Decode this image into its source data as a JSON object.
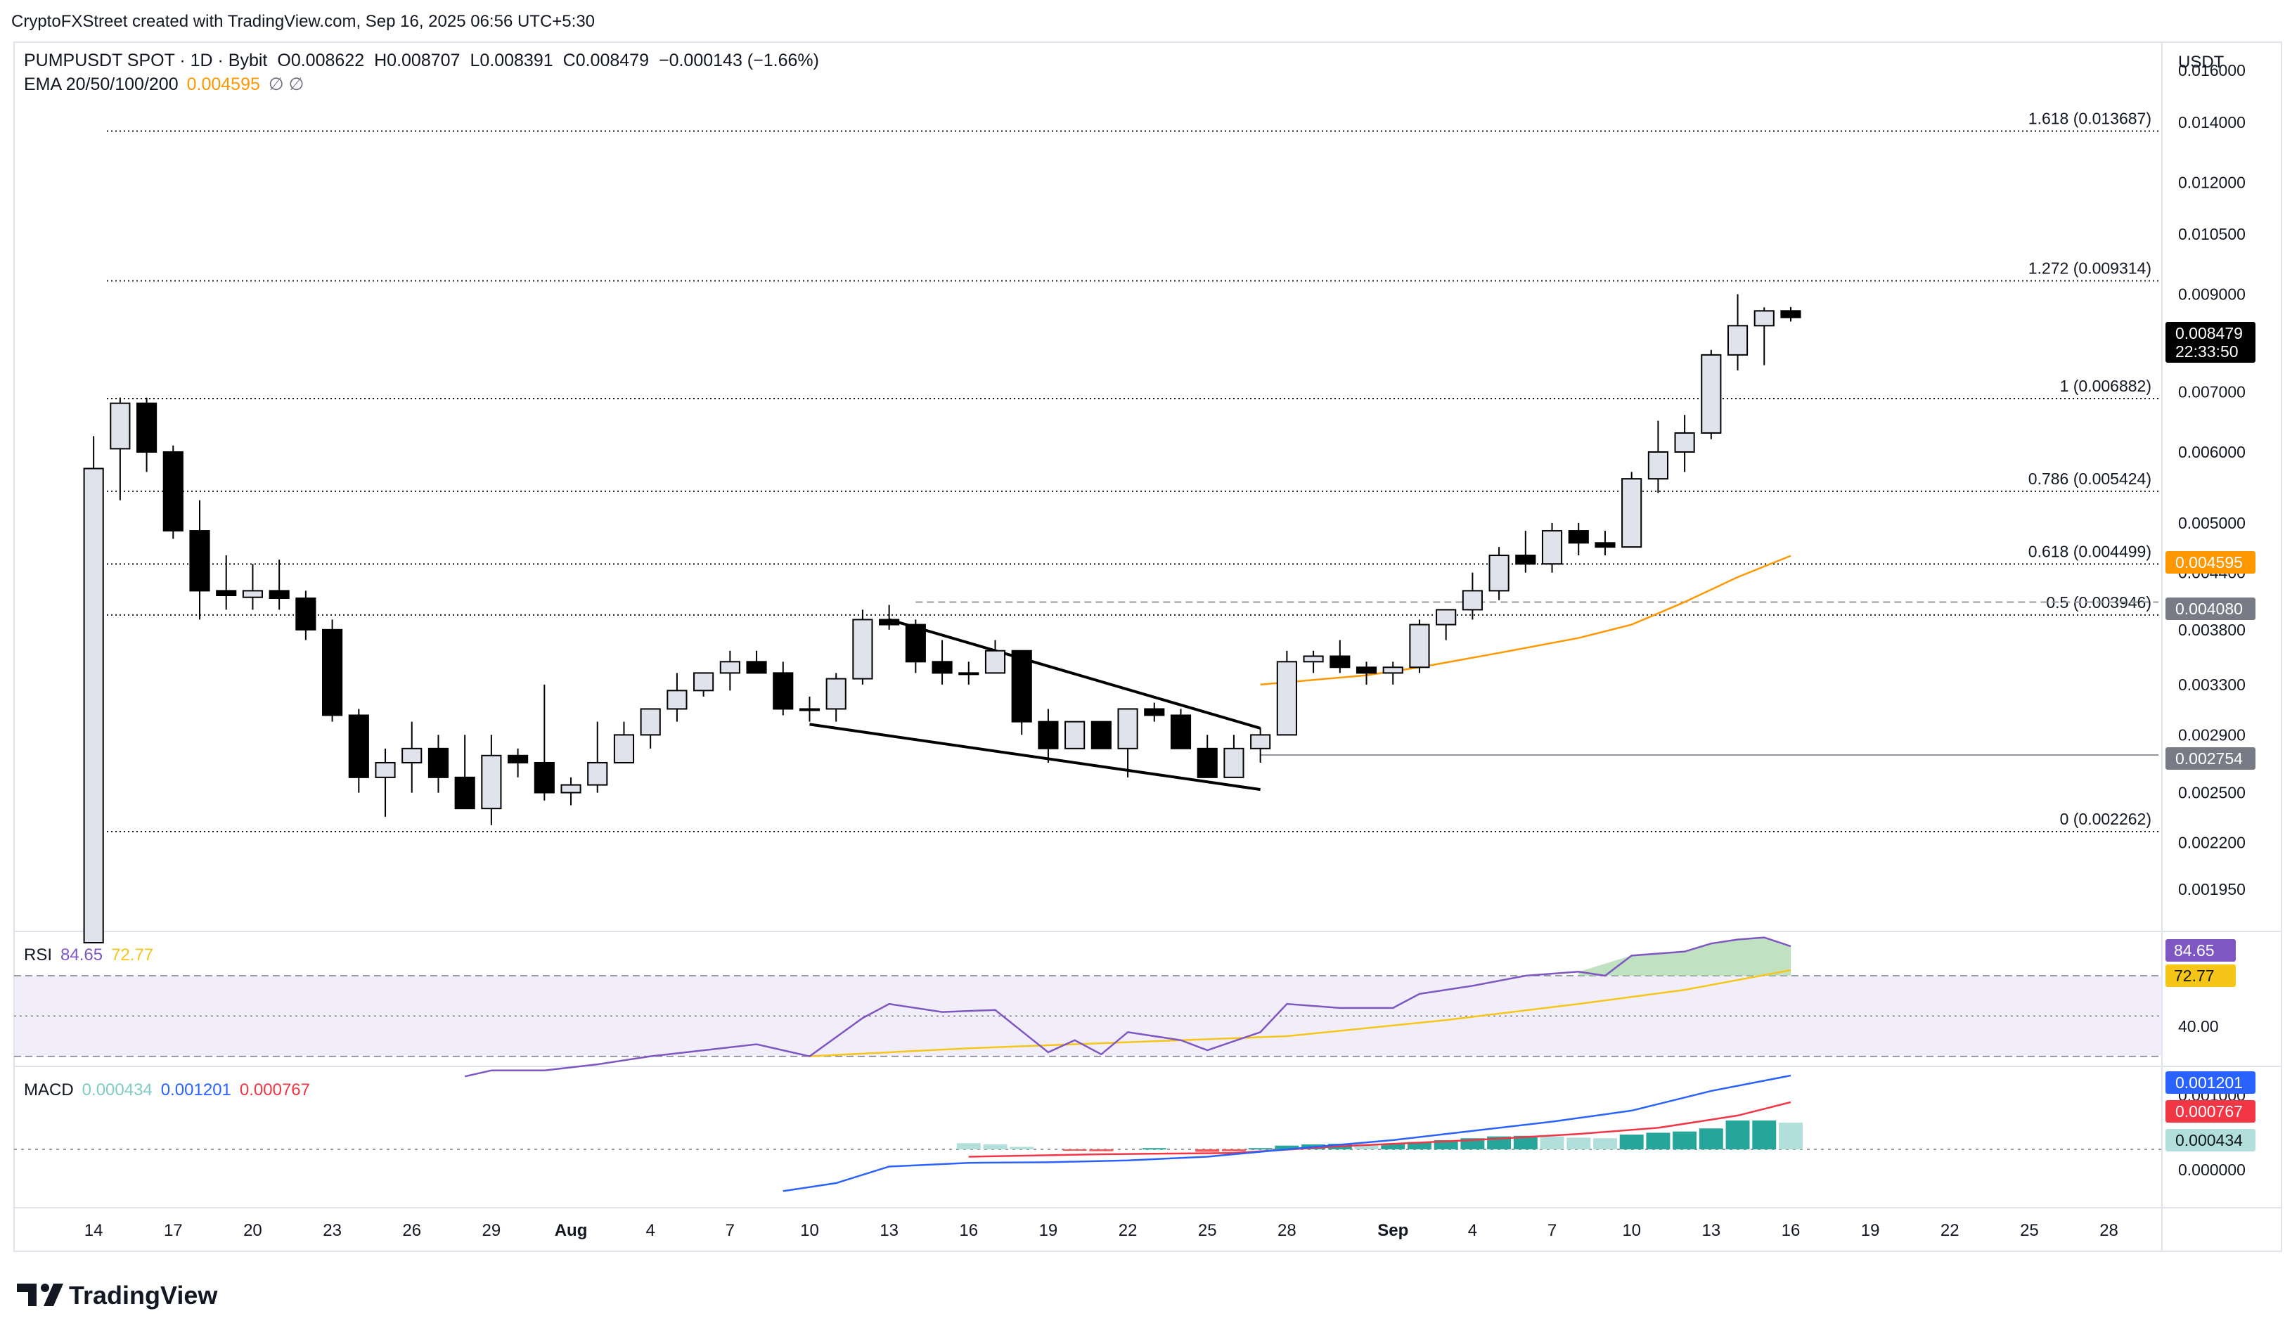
{
  "header": {
    "attribution": "CryptoFXStreet created with TradingView.com, Sep 16, 2025 06:56 UTC+5:30",
    "currency": "USDT",
    "logo_text": "TradingView"
  },
  "legend": {
    "symbol_line": "PUMPUSDT SPOT · 1D · Bybit",
    "open_label": "O",
    "open": "0.008622",
    "high_label": "H",
    "high": "0.008707",
    "low_label": "L",
    "low": "0.008391",
    "close_label": "C",
    "close": "0.008479",
    "change": "−0.000143 (−1.66%)",
    "ema_label": "EMA 20/50/100/200",
    "ema_value": "0.004595",
    "ema_flags": "∅ ∅"
  },
  "price_badges": {
    "last_price": "0.008479",
    "countdown": "22:33:50",
    "ema": "0.004595",
    "level_a": "0.004080",
    "level_b": "0.002754"
  },
  "rsi": {
    "label": "RSI",
    "value": "84.65",
    "ma_value": "72.77",
    "axis_tick": "40.00"
  },
  "macd": {
    "label": "MACD",
    "hist_value": "0.000434",
    "macd_value": "0.001201",
    "signal_value": "0.000767",
    "axis_ticks": [
      "0.001000",
      "0.000000"
    ]
  },
  "colors": {
    "up_body": "#e0e3eb",
    "down_body": "#000000",
    "ema": "#ff9800",
    "rsi": "#7e57c2",
    "rsi_ma": "#f5c518",
    "macd": "#2962ff",
    "signal": "#f23645",
    "hist_strong_up": "#26a69a",
    "hist_weak_up": "#b2dfdb",
    "hist_down": "#ff5252"
  },
  "chart_data": {
    "type": "candlestick",
    "title": "PUMPUSDT SPOT · 1D · Bybit",
    "y_scale": "log",
    "ylim": [
      0.00175,
      0.0172
    ],
    "y_ticks": [
      "0.016000",
      "0.014000",
      "0.012000",
      "0.010500",
      "0.009000",
      "0.007000",
      "0.006000",
      "0.005000",
      "0.004400",
      "0.003800",
      "0.003300",
      "0.002900",
      "0.002500",
      "0.002200",
      "0.001950"
    ],
    "x_tick_labels": [
      "14",
      "17",
      "20",
      "23",
      "26",
      "29",
      "Aug",
      "4",
      "7",
      "10",
      "13",
      "16",
      "19",
      "22",
      "25",
      "28",
      "Sep",
      "4",
      "7",
      "10",
      "13",
      "16",
      "19",
      "22",
      "25",
      "28"
    ],
    "x_tick_dates": [
      "2025-07-14",
      "2025-07-17",
      "2025-07-20",
      "2025-07-23",
      "2025-07-26",
      "2025-07-29",
      "2025-08-01",
      "2025-08-04",
      "2025-08-07",
      "2025-08-10",
      "2025-08-13",
      "2025-08-16",
      "2025-08-19",
      "2025-08-22",
      "2025-08-25",
      "2025-08-28",
      "2025-09-01",
      "2025-09-04",
      "2025-09-07",
      "2025-09-10",
      "2025-09-13",
      "2025-09-16",
      "2025-09-19",
      "2025-09-22",
      "2025-09-25",
      "2025-09-28"
    ],
    "x_range_dates": [
      "2025-07-11",
      "2025-09-30"
    ],
    "candles": [
      {
        "d": "2025-07-14",
        "o": 0.0017,
        "h": 0.00625,
        "l": 0.0017,
        "c": 0.00575
      },
      {
        "d": "2025-07-15",
        "o": 0.00605,
        "h": 0.0069,
        "l": 0.0053,
        "c": 0.0068
      },
      {
        "d": "2025-07-16",
        "o": 0.0068,
        "h": 0.0069,
        "l": 0.0057,
        "c": 0.006
      },
      {
        "d": "2025-07-17",
        "o": 0.006,
        "h": 0.0061,
        "l": 0.0048,
        "c": 0.0049
      },
      {
        "d": "2025-07-18",
        "o": 0.0049,
        "h": 0.0053,
        "l": 0.0039,
        "c": 0.0042
      },
      {
        "d": "2025-07-19",
        "o": 0.0042,
        "h": 0.0046,
        "l": 0.004,
        "c": 0.00415
      },
      {
        "d": "2025-07-20",
        "o": 0.00413,
        "h": 0.0045,
        "l": 0.004,
        "c": 0.0042
      },
      {
        "d": "2025-07-21",
        "o": 0.0042,
        "h": 0.00455,
        "l": 0.004,
        "c": 0.00412
      },
      {
        "d": "2025-07-22",
        "o": 0.00412,
        "h": 0.0042,
        "l": 0.0037,
        "c": 0.0038
      },
      {
        "d": "2025-07-23",
        "o": 0.0038,
        "h": 0.0039,
        "l": 0.003,
        "c": 0.00305
      },
      {
        "d": "2025-07-24",
        "o": 0.00305,
        "h": 0.0031,
        "l": 0.0025,
        "c": 0.0026
      },
      {
        "d": "2025-07-25",
        "o": 0.0026,
        "h": 0.0028,
        "l": 0.00235,
        "c": 0.0027
      },
      {
        "d": "2025-07-26",
        "o": 0.0027,
        "h": 0.003,
        "l": 0.0025,
        "c": 0.0028
      },
      {
        "d": "2025-07-27",
        "o": 0.0028,
        "h": 0.0029,
        "l": 0.0025,
        "c": 0.0026
      },
      {
        "d": "2025-07-28",
        "o": 0.0026,
        "h": 0.0029,
        "l": 0.0024,
        "c": 0.0024
      },
      {
        "d": "2025-07-29",
        "o": 0.0024,
        "h": 0.0029,
        "l": 0.0023,
        "c": 0.00275
      },
      {
        "d": "2025-07-30",
        "o": 0.00275,
        "h": 0.0028,
        "l": 0.0026,
        "c": 0.0027
      },
      {
        "d": "2025-07-31",
        "o": 0.0027,
        "h": 0.0033,
        "l": 0.00245,
        "c": 0.0025
      },
      {
        "d": "2025-08-01",
        "o": 0.0025,
        "h": 0.0026,
        "l": 0.00242,
        "c": 0.00255
      },
      {
        "d": "2025-08-02",
        "o": 0.00255,
        "h": 0.003,
        "l": 0.0025,
        "c": 0.0027
      },
      {
        "d": "2025-08-03",
        "o": 0.0027,
        "h": 0.003,
        "l": 0.0027,
        "c": 0.0029
      },
      {
        "d": "2025-08-04",
        "o": 0.0029,
        "h": 0.0031,
        "l": 0.0028,
        "c": 0.0031
      },
      {
        "d": "2025-08-05",
        "o": 0.0031,
        "h": 0.0034,
        "l": 0.003,
        "c": 0.00325
      },
      {
        "d": "2025-08-06",
        "o": 0.00325,
        "h": 0.0034,
        "l": 0.0032,
        "c": 0.0034
      },
      {
        "d": "2025-08-07",
        "o": 0.0034,
        "h": 0.0036,
        "l": 0.00325,
        "c": 0.0035
      },
      {
        "d": "2025-08-08",
        "o": 0.0035,
        "h": 0.0036,
        "l": 0.0034,
        "c": 0.0034
      },
      {
        "d": "2025-08-09",
        "o": 0.0034,
        "h": 0.0035,
        "l": 0.00305,
        "c": 0.0031
      },
      {
        "d": "2025-08-10",
        "o": 0.0031,
        "h": 0.0032,
        "l": 0.003,
        "c": 0.0031
      },
      {
        "d": "2025-08-11",
        "o": 0.0031,
        "h": 0.0034,
        "l": 0.003,
        "c": 0.00335
      },
      {
        "d": "2025-08-12",
        "o": 0.00335,
        "h": 0.004,
        "l": 0.0033,
        "c": 0.0039
      },
      {
        "d": "2025-08-13",
        "o": 0.0039,
        "h": 0.00405,
        "l": 0.0038,
        "c": 0.00385
      },
      {
        "d": "2025-08-14",
        "o": 0.00385,
        "h": 0.0039,
        "l": 0.0034,
        "c": 0.0035
      },
      {
        "d": "2025-08-15",
        "o": 0.0035,
        "h": 0.0037,
        "l": 0.0033,
        "c": 0.0034
      },
      {
        "d": "2025-08-16",
        "o": 0.0034,
        "h": 0.0035,
        "l": 0.0033,
        "c": 0.0034
      },
      {
        "d": "2025-08-17",
        "o": 0.0034,
        "h": 0.0037,
        "l": 0.0034,
        "c": 0.0036
      },
      {
        "d": "2025-08-18",
        "o": 0.0036,
        "h": 0.0036,
        "l": 0.0029,
        "c": 0.003
      },
      {
        "d": "2025-08-19",
        "o": 0.003,
        "h": 0.0031,
        "l": 0.0027,
        "c": 0.0028
      },
      {
        "d": "2025-08-20",
        "o": 0.0028,
        "h": 0.003,
        "l": 0.0028,
        "c": 0.003
      },
      {
        "d": "2025-08-21",
        "o": 0.003,
        "h": 0.003,
        "l": 0.0028,
        "c": 0.0028
      },
      {
        "d": "2025-08-22",
        "o": 0.0028,
        "h": 0.0031,
        "l": 0.0026,
        "c": 0.0031
      },
      {
        "d": "2025-08-23",
        "o": 0.0031,
        "h": 0.00315,
        "l": 0.003,
        "c": 0.00305
      },
      {
        "d": "2025-08-24",
        "o": 0.00305,
        "h": 0.0031,
        "l": 0.0028,
        "c": 0.0028
      },
      {
        "d": "2025-08-25",
        "o": 0.0028,
        "h": 0.0029,
        "l": 0.0026,
        "c": 0.0026
      },
      {
        "d": "2025-08-26",
        "o": 0.0026,
        "h": 0.0029,
        "l": 0.0026,
        "c": 0.0028
      },
      {
        "d": "2025-08-27",
        "o": 0.0028,
        "h": 0.00295,
        "l": 0.0027,
        "c": 0.0029
      },
      {
        "d": "2025-08-28",
        "o": 0.0029,
        "h": 0.0036,
        "l": 0.0029,
        "c": 0.0035
      },
      {
        "d": "2025-08-29",
        "o": 0.0035,
        "h": 0.0036,
        "l": 0.0034,
        "c": 0.00355
      },
      {
        "d": "2025-08-30",
        "o": 0.00355,
        "h": 0.0037,
        "l": 0.0034,
        "c": 0.00345
      },
      {
        "d": "2025-08-31",
        "o": 0.00345,
        "h": 0.0035,
        "l": 0.0033,
        "c": 0.0034
      },
      {
        "d": "2025-09-01",
        "o": 0.0034,
        "h": 0.0035,
        "l": 0.0033,
        "c": 0.00345
      },
      {
        "d": "2025-09-02",
        "o": 0.00345,
        "h": 0.0039,
        "l": 0.0034,
        "c": 0.00385
      },
      {
        "d": "2025-09-03",
        "o": 0.00385,
        "h": 0.004,
        "l": 0.0037,
        "c": 0.004
      },
      {
        "d": "2025-09-04",
        "o": 0.004,
        "h": 0.0044,
        "l": 0.0039,
        "c": 0.0042
      },
      {
        "d": "2025-09-05",
        "o": 0.0042,
        "h": 0.0047,
        "l": 0.0041,
        "c": 0.0046
      },
      {
        "d": "2025-09-06",
        "o": 0.0046,
        "h": 0.0049,
        "l": 0.0044,
        "c": 0.0045
      },
      {
        "d": "2025-09-07",
        "o": 0.0045,
        "h": 0.005,
        "l": 0.0044,
        "c": 0.0049
      },
      {
        "d": "2025-09-08",
        "o": 0.0049,
        "h": 0.005,
        "l": 0.0046,
        "c": 0.00475
      },
      {
        "d": "2025-09-09",
        "o": 0.00475,
        "h": 0.0049,
        "l": 0.0046,
        "c": 0.0047
      },
      {
        "d": "2025-09-10",
        "o": 0.0047,
        "h": 0.0057,
        "l": 0.0047,
        "c": 0.0056
      },
      {
        "d": "2025-09-11",
        "o": 0.0056,
        "h": 0.0065,
        "l": 0.0054,
        "c": 0.006
      },
      {
        "d": "2025-09-12",
        "o": 0.006,
        "h": 0.0066,
        "l": 0.0057,
        "c": 0.0063
      },
      {
        "d": "2025-09-13",
        "o": 0.0063,
        "h": 0.0078,
        "l": 0.0062,
        "c": 0.0077
      },
      {
        "d": "2025-09-14",
        "o": 0.0077,
        "h": 0.009,
        "l": 0.0074,
        "c": 0.0083
      },
      {
        "d": "2025-09-15",
        "o": 0.0083,
        "h": 0.0087,
        "l": 0.0075,
        "c": 0.008622
      },
      {
        "d": "2025-09-16",
        "o": 0.008622,
        "h": 0.008707,
        "l": 0.008391,
        "c": 0.008479
      }
    ],
    "ema_series": [
      {
        "d": "2025-08-27",
        "v": 0.0033
      },
      {
        "d": "2025-08-31",
        "v": 0.00338
      },
      {
        "d": "2025-09-02",
        "v": 0.00345
      },
      {
        "d": "2025-09-05",
        "v": 0.00358
      },
      {
        "d": "2025-09-08",
        "v": 0.00372
      },
      {
        "d": "2025-09-10",
        "v": 0.00385
      },
      {
        "d": "2025-09-12",
        "v": 0.00408
      },
      {
        "d": "2025-09-14",
        "v": 0.00435
      },
      {
        "d": "2025-09-16",
        "v": 0.004595
      }
    ],
    "fib_levels": [
      {
        "label": "1.618 (0.013687)",
        "value": 0.013687
      },
      {
        "label": "1.272 (0.009314)",
        "value": 0.009314
      },
      {
        "label": "1 (0.006882)",
        "value": 0.006882
      },
      {
        "label": "0.786 (0.005424)",
        "value": 0.005424
      },
      {
        "label": "0.618 (0.004499)",
        "value": 0.004499
      },
      {
        "label": "0.5 (0.003946)",
        "value": 0.003946
      },
      {
        "label": "0 (0.002262)",
        "value": 0.002262
      }
    ],
    "fib_start_date": "2025-07-15",
    "horizontal_lines": [
      {
        "value": 0.00408,
        "style": "dashed",
        "from": "2025-08-14"
      },
      {
        "value": 0.002754,
        "style": "solid",
        "from": "2025-08-27"
      }
    ],
    "wedge": {
      "upper": [
        {
          "d": "2025-08-13",
          "v": 0.0039
        },
        {
          "d": "2025-08-27",
          "v": 0.00295
        }
      ],
      "lower": [
        {
          "d": "2025-08-10",
          "v": 0.00298
        },
        {
          "d": "2025-08-27",
          "v": 0.00252
        }
      ]
    },
    "rsi_series": [
      {
        "d": "2025-07-28",
        "v": 20
      },
      {
        "d": "2025-07-29",
        "v": 23
      },
      {
        "d": "2025-07-31",
        "v": 23
      },
      {
        "d": "2025-08-02",
        "v": 26
      },
      {
        "d": "2025-08-04",
        "v": 30
      },
      {
        "d": "2025-08-06",
        "v": 33
      },
      {
        "d": "2025-08-08",
        "v": 36
      },
      {
        "d": "2025-08-10",
        "v": 30
      },
      {
        "d": "2025-08-12",
        "v": 49
      },
      {
        "d": "2025-08-13",
        "v": 56
      },
      {
        "d": "2025-08-15",
        "v": 52
      },
      {
        "d": "2025-08-17",
        "v": 53
      },
      {
        "d": "2025-08-19",
        "v": 32
      },
      {
        "d": "2025-08-20",
        "v": 38
      },
      {
        "d": "2025-08-21",
        "v": 31
      },
      {
        "d": "2025-08-22",
        "v": 42
      },
      {
        "d": "2025-08-24",
        "v": 38
      },
      {
        "d": "2025-08-25",
        "v": 33
      },
      {
        "d": "2025-08-27",
        "v": 42
      },
      {
        "d": "2025-08-28",
        "v": 56
      },
      {
        "d": "2025-08-30",
        "v": 54
      },
      {
        "d": "2025-09-01",
        "v": 54
      },
      {
        "d": "2025-09-02",
        "v": 61
      },
      {
        "d": "2025-09-04",
        "v": 65
      },
      {
        "d": "2025-09-06",
        "v": 70
      },
      {
        "d": "2025-09-08",
        "v": 72
      },
      {
        "d": "2025-09-09",
        "v": 70
      },
      {
        "d": "2025-09-10",
        "v": 80
      },
      {
        "d": "2025-09-12",
        "v": 82
      },
      {
        "d": "2025-09-13",
        "v": 86
      },
      {
        "d": "2025-09-14",
        "v": 88
      },
      {
        "d": "2025-09-15",
        "v": 89
      },
      {
        "d": "2025-09-16",
        "v": 84.65
      }
    ],
    "rsi_ma_series": [
      {
        "d": "2025-08-10",
        "v": 30
      },
      {
        "d": "2025-08-16",
        "v": 34
      },
      {
        "d": "2025-08-22",
        "v": 37
      },
      {
        "d": "2025-08-28",
        "v": 40
      },
      {
        "d": "2025-09-03",
        "v": 48
      },
      {
        "d": "2025-09-08",
        "v": 56
      },
      {
        "d": "2025-09-12",
        "v": 63
      },
      {
        "d": "2025-09-16",
        "v": 72.77
      }
    ],
    "rsi_bands": [
      70,
      50,
      30
    ],
    "rsi_ylim": [
      25,
      92
    ],
    "macd_series": [
      {
        "d": "2025-08-09",
        "v": -0.00068
      },
      {
        "d": "2025-08-11",
        "v": -0.00055
      },
      {
        "d": "2025-08-13",
        "v": -0.00028
      },
      {
        "d": "2025-08-16",
        "v": -0.00022
      },
      {
        "d": "2025-08-19",
        "v": -0.00021
      },
      {
        "d": "2025-08-22",
        "v": -0.00018
      },
      {
        "d": "2025-08-25",
        "v": -0.00012
      },
      {
        "d": "2025-08-28",
        "v": 0.0
      },
      {
        "d": "2025-09-01",
        "v": 0.00015
      },
      {
        "d": "2025-09-04",
        "v": 0.0003
      },
      {
        "d": "2025-09-07",
        "v": 0.00045
      },
      {
        "d": "2025-09-10",
        "v": 0.00063
      },
      {
        "d": "2025-09-13",
        "v": 0.00095
      },
      {
        "d": "2025-09-16",
        "v": 0.001201
      }
    ],
    "signal_series": [
      {
        "d": "2025-08-16",
        "v": -0.00012
      },
      {
        "d": "2025-08-21",
        "v": -8e-05
      },
      {
        "d": "2025-08-26",
        "v": -6e-05
      },
      {
        "d": "2025-08-30",
        "v": 5e-05
      },
      {
        "d": "2025-09-04",
        "v": 0.00015
      },
      {
        "d": "2025-09-08",
        "v": 0.00025
      },
      {
        "d": "2025-09-11",
        "v": 0.00035
      },
      {
        "d": "2025-09-14",
        "v": 0.00055
      },
      {
        "d": "2025-09-16",
        "v": 0.000767
      }
    ],
    "macd_hist": [
      {
        "d": "2025-08-16",
        "v": 0.0001
      },
      {
        "d": "2025-08-17",
        "v": 8e-05
      },
      {
        "d": "2025-08-18",
        "v": 4e-05
      },
      {
        "d": "2025-08-20",
        "v": -2e-05
      },
      {
        "d": "2025-08-21",
        "v": -3e-05
      },
      {
        "d": "2025-08-23",
        "v": 2e-05
      },
      {
        "d": "2025-08-25",
        "v": -4e-05
      },
      {
        "d": "2025-08-26",
        "v": -3e-05
      },
      {
        "d": "2025-08-27",
        "v": 2e-05
      },
      {
        "d": "2025-08-28",
        "v": 6e-05
      },
      {
        "d": "2025-08-29",
        "v": 8e-05
      },
      {
        "d": "2025-08-30",
        "v": 9e-05
      },
      {
        "d": "2025-08-31",
        "v": 8e-05
      },
      {
        "d": "2025-09-01",
        "v": 9e-05
      },
      {
        "d": "2025-09-02",
        "v": 0.00012
      },
      {
        "d": "2025-09-03",
        "v": 0.00015
      },
      {
        "d": "2025-09-04",
        "v": 0.00018
      },
      {
        "d": "2025-09-05",
        "v": 0.00021
      },
      {
        "d": "2025-09-06",
        "v": 0.00022
      },
      {
        "d": "2025-09-07",
        "v": 0.00021
      },
      {
        "d": "2025-09-08",
        "v": 0.00019
      },
      {
        "d": "2025-09-09",
        "v": 0.00018
      },
      {
        "d": "2025-09-10",
        "v": 0.00024
      },
      {
        "d": "2025-09-11",
        "v": 0.00027
      },
      {
        "d": "2025-09-12",
        "v": 0.00029
      },
      {
        "d": "2025-09-13",
        "v": 0.00034
      },
      {
        "d": "2025-09-14",
        "v": 0.00047
      },
      {
        "d": "2025-09-15",
        "v": 0.00047
      },
      {
        "d": "2025-09-16",
        "v": 0.000434
      }
    ],
    "macd_ylim": [
      -0.00095,
      0.00135
    ]
  }
}
